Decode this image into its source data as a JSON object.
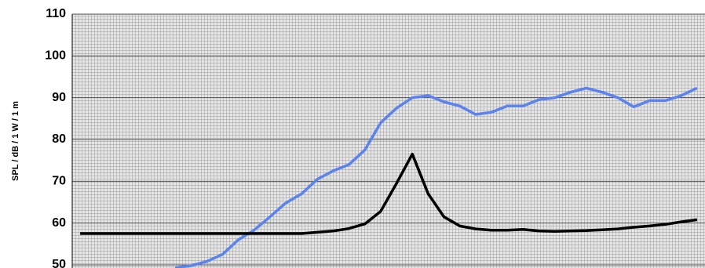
{
  "chart_data": {
    "type": "line",
    "y_label": "SPL / dB / 1 W / 1 m",
    "categories": [
      null,
      null,
      null,
      null,
      null,
      null,
      null,
      null,
      null,
      null,
      null,
      null,
      null,
      null,
      null,
      null,
      null,
      null,
      null,
      null,
      null,
      null,
      null,
      null,
      null,
      null,
      null,
      null,
      null,
      null,
      null,
      null,
      null,
      null,
      null,
      null,
      null,
      null,
      null,
      null
    ],
    "series": [
      {
        "color": "#5b83f0",
        "values": [
          null,
          null,
          null,
          null,
          null,
          null,
          49.3,
          49.8,
          50.8,
          52.5,
          56,
          58.3,
          61.5,
          64.8,
          67,
          70.5,
          72.5,
          74,
          77.5,
          84,
          87.5,
          90,
          90.5,
          89,
          88,
          86,
          86.5,
          88,
          88,
          89.5,
          90,
          91.3,
          92.3,
          91.3,
          90,
          87.8,
          89.3,
          89.3,
          90.5,
          92.3
        ]
      },
      {
        "color": "#000000",
        "values": [
          57.5,
          57.5,
          57.5,
          57.5,
          57.5,
          57.5,
          57.5,
          57.5,
          57.5,
          57.5,
          57.5,
          57.5,
          57.5,
          57.5,
          57.5,
          57.8,
          58.1,
          58.7,
          59.8,
          62.8,
          69.5,
          76.5,
          67,
          61.5,
          59.3,
          58.6,
          58.3,
          58.3,
          58.5,
          58.1,
          58,
          58.1,
          58.2,
          58.4,
          58.6,
          59,
          59.3,
          59.7,
          60.3,
          60.8
        ]
      }
    ],
    "ylim": [
      50,
      110
    ],
    "yticks": [
      50,
      60,
      70,
      80,
      90,
      100,
      110
    ],
    "grid": true
  }
}
